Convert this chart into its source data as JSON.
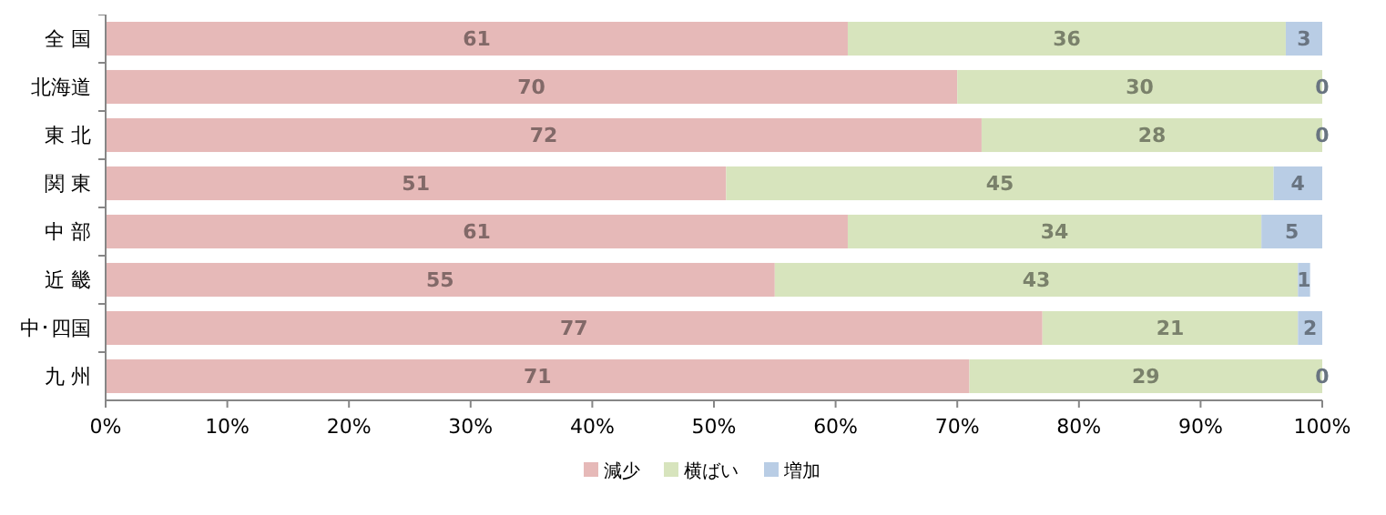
{
  "chart_data": {
    "type": "bar",
    "orientation": "horizontal",
    "stacked": true,
    "data_labels": true,
    "legend": "bottom",
    "grid": false,
    "categories": [
      "全 国",
      "北海道",
      "東 北",
      "関 東",
      "中 部",
      "近 畿",
      "中･四国",
      "九 州"
    ],
    "series": [
      {
        "name": "減少",
        "color": "#e6b9b8",
        "values": [
          61,
          70,
          72,
          51,
          61,
          55,
          77,
          71
        ]
      },
      {
        "name": "横ばい",
        "color": "#d7e4bd",
        "values": [
          36,
          30,
          28,
          45,
          34,
          43,
          21,
          29
        ]
      },
      {
        "name": "増加",
        "color": "#b9cde5",
        "values": [
          3,
          0,
          0,
          4,
          5,
          1,
          2,
          0
        ]
      }
    ],
    "xlim": [
      0,
      100
    ],
    "xticks": [
      {
        "value": 0,
        "label": "0%"
      },
      {
        "value": 10,
        "label": "10%"
      },
      {
        "value": 20,
        "label": "20%"
      },
      {
        "value": 30,
        "label": "30%"
      },
      {
        "value": 40,
        "label": "40%"
      },
      {
        "value": 50,
        "label": "50%"
      },
      {
        "value": 60,
        "label": "60%"
      },
      {
        "value": 70,
        "label": "70%"
      },
      {
        "value": 80,
        "label": "80%"
      },
      {
        "value": 90,
        "label": "90%"
      },
      {
        "value": 100,
        "label": "100%"
      }
    ]
  }
}
